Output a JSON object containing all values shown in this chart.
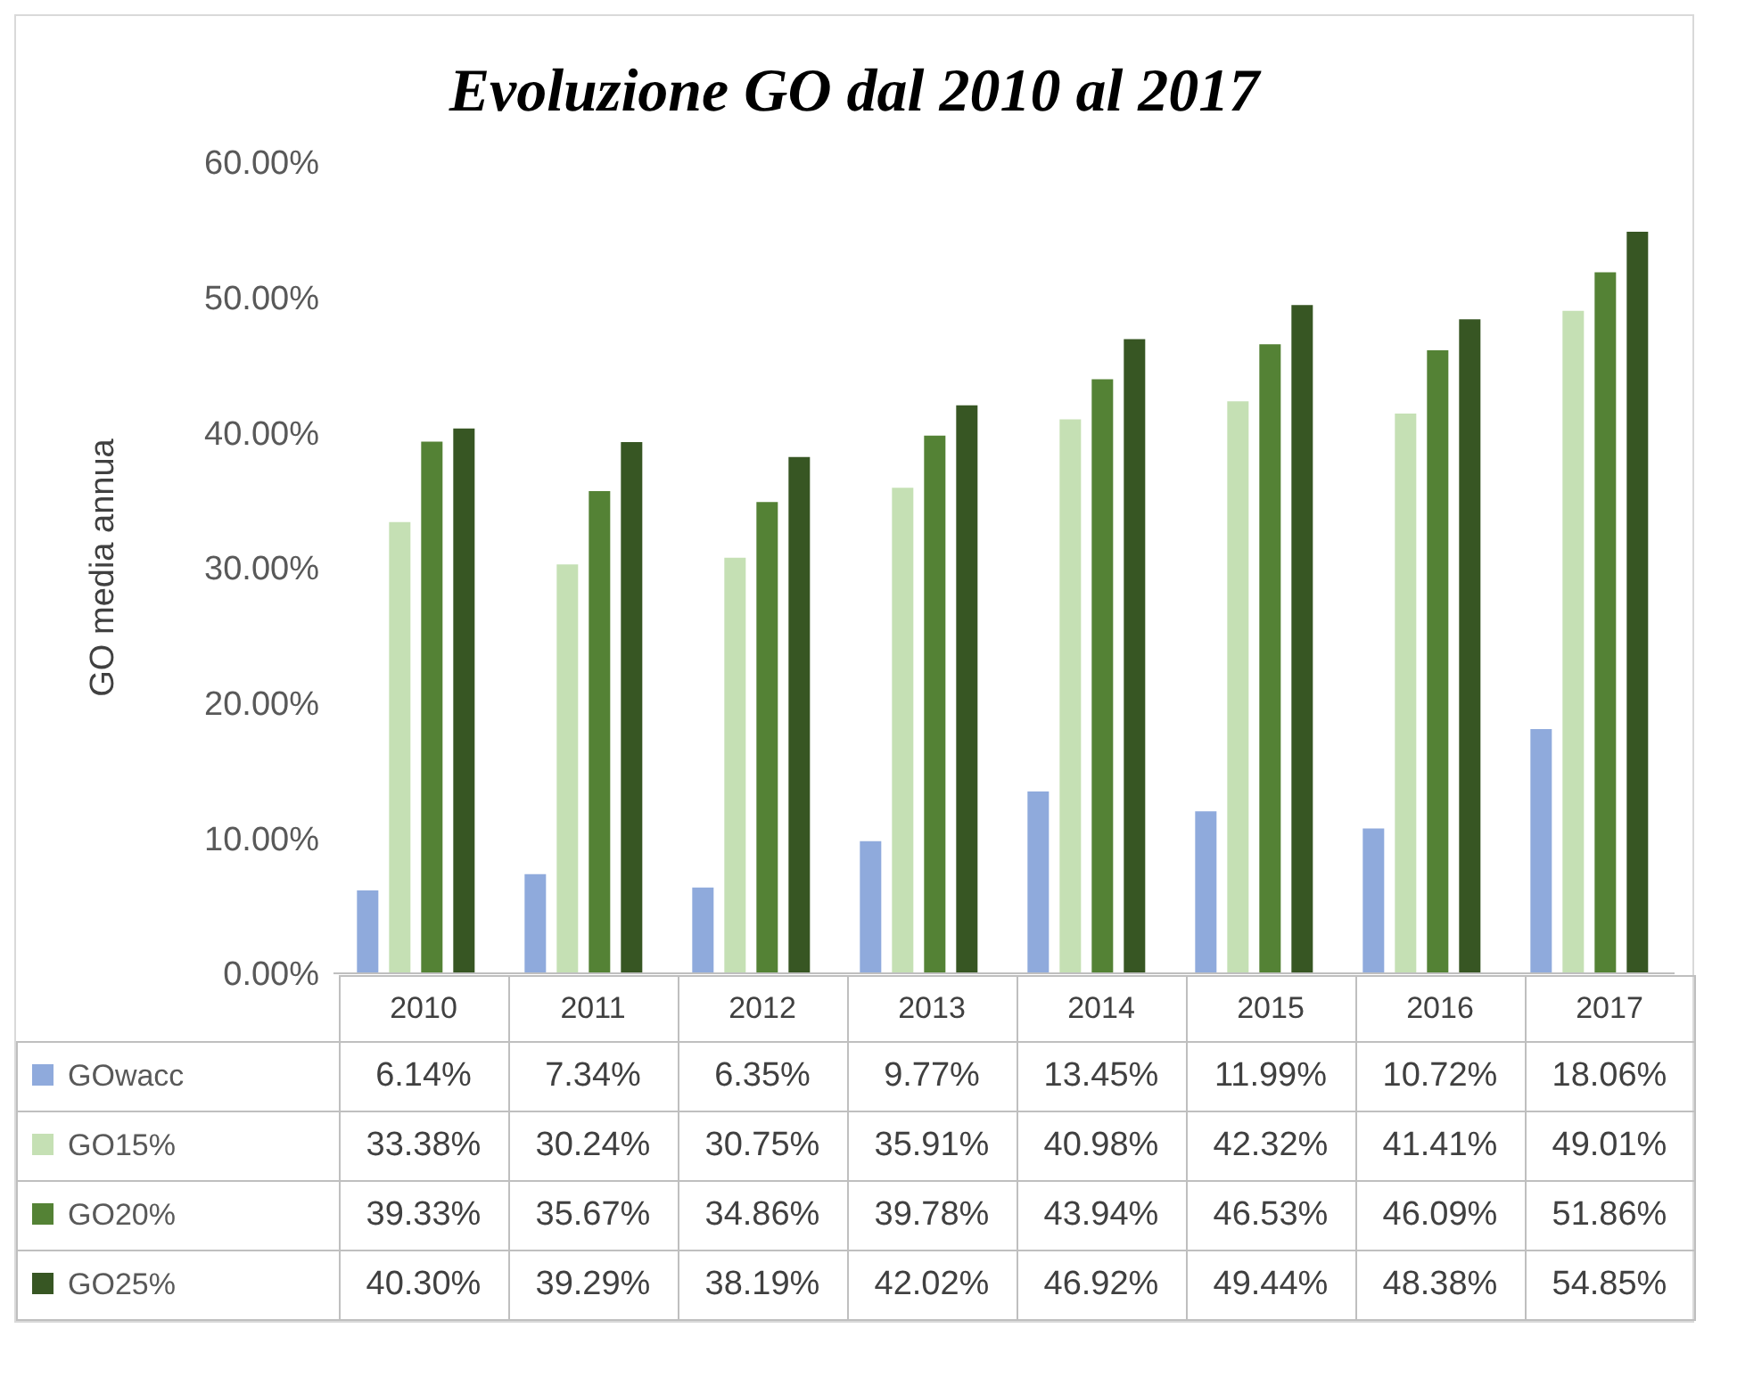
{
  "chart_data": {
    "type": "bar",
    "title": "Evoluzione GO dal 2010 al 2017",
    "ylabel": "GO media annua",
    "categories": [
      "2010",
      "2011",
      "2012",
      "2013",
      "2014",
      "2015",
      "2016",
      "2017"
    ],
    "series": [
      {
        "name": "GOwacc",
        "color": "#8faadc",
        "values": [
          6.14,
          7.34,
          6.35,
          9.77,
          13.45,
          11.99,
          10.72,
          18.06
        ],
        "value_labels": [
          "6.14%",
          "7.34%",
          "6.35%",
          "9.77%",
          "13.45%",
          "11.99%",
          "10.72%",
          "18.06%"
        ]
      },
      {
        "name": "GO15%",
        "color": "#c5e0b4",
        "values": [
          33.38,
          30.24,
          30.75,
          35.91,
          40.98,
          42.32,
          41.41,
          49.01
        ],
        "value_labels": [
          "33.38%",
          "30.24%",
          "30.75%",
          "35.91%",
          "40.98%",
          "42.32%",
          "41.41%",
          "49.01%"
        ]
      },
      {
        "name": "GO20%",
        "color": "#548235",
        "values": [
          39.33,
          35.67,
          34.86,
          39.78,
          43.94,
          46.53,
          46.09,
          51.86
        ],
        "value_labels": [
          "39.33%",
          "35.67%",
          "34.86%",
          "39.78%",
          "43.94%",
          "46.53%",
          "46.09%",
          "51.86%"
        ]
      },
      {
        "name": "GO25%",
        "color": "#375623",
        "values": [
          40.3,
          39.29,
          38.19,
          42.02,
          46.92,
          49.44,
          48.38,
          54.85
        ],
        "value_labels": [
          "40.30%",
          "39.29%",
          "38.19%",
          "42.02%",
          "46.92%",
          "49.44%",
          "48.38%",
          "54.85%"
        ]
      }
    ],
    "ylim": [
      0,
      60
    ],
    "yticks": [
      {
        "value": 0,
        "label": "0.00%"
      },
      {
        "value": 10,
        "label": "10.00%"
      },
      {
        "value": 20,
        "label": "20.00%"
      },
      {
        "value": 30,
        "label": "30.00%"
      },
      {
        "value": 40,
        "label": "40.00%"
      },
      {
        "value": 50,
        "label": "50.00%"
      },
      {
        "value": 60,
        "label": "60.00%"
      }
    ],
    "legend": "bottom"
  }
}
